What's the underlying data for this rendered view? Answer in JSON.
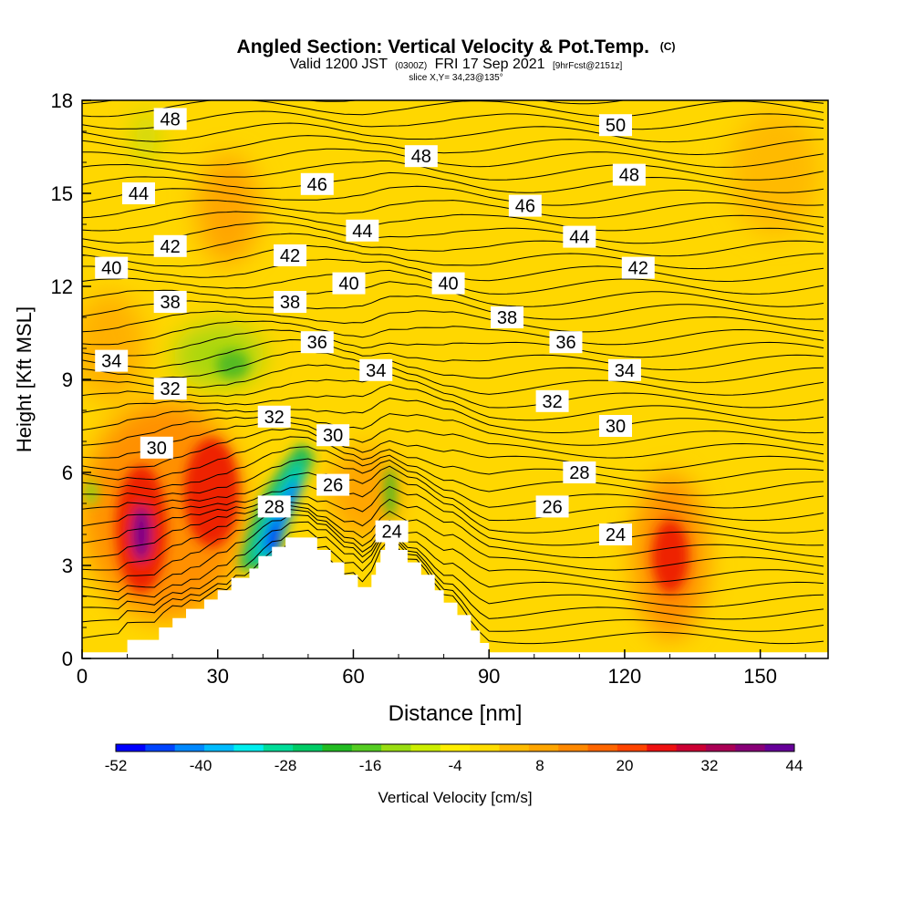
{
  "chart_data": {
    "type": "heatmap",
    "title": {
      "main": "Angled Section: Vertical Velocity & Pot.Temp.",
      "main_suffix": "(C)",
      "valid_prefix": "Valid 1200 JST",
      "valid_zone": "(0300Z)",
      "valid_date": "FRI 17 Sep 2021",
      "valid_fcst": "[9hrFcst@2151z]",
      "slice": "slice X,Y= 34,23@135°"
    },
    "xlabel": "Distance [nm]",
    "ylabel": "Height [Kft MSL]",
    "xlim": [
      0,
      165
    ],
    "ylim": [
      0,
      18
    ],
    "xticks": [
      0,
      30,
      60,
      90,
      120,
      150
    ],
    "yticks": [
      0,
      3,
      6,
      9,
      12,
      15,
      18
    ],
    "colorbar": {
      "label": "Vertical Velocity [cm/s]",
      "tick_labels": [
        "-52",
        "-40",
        "-28",
        "-16",
        "-4",
        "8",
        "20",
        "32",
        "44"
      ],
      "range": [
        -52,
        44
      ],
      "colors": [
        "#0000ff",
        "#0044ff",
        "#0088ff",
        "#00bbff",
        "#00eeee",
        "#00dd99",
        "#00cc66",
        "#22bb22",
        "#55cc22",
        "#99dd11",
        "#ccee00",
        "#ffee00",
        "#ffdd00",
        "#ffbb00",
        "#ffa500",
        "#ff8800",
        "#ff6600",
        "#ff4400",
        "#ee1111",
        "#cc0033",
        "#aa0055",
        "#880077",
        "#660099"
      ]
    },
    "theta_contour_labels": [
      {
        "text": "48",
        "x": 19.5,
        "y": 17.4
      },
      {
        "text": "50",
        "x": 118,
        "y": 17.2
      },
      {
        "text": "48",
        "x": 75,
        "y": 16.2
      },
      {
        "text": "48",
        "x": 121,
        "y": 15.6
      },
      {
        "text": "44",
        "x": 12.5,
        "y": 15.0
      },
      {
        "text": "46",
        "x": 52,
        "y": 15.3
      },
      {
        "text": "46",
        "x": 98,
        "y": 14.6
      },
      {
        "text": "44",
        "x": 62,
        "y": 13.8
      },
      {
        "text": "44",
        "x": 110,
        "y": 13.6
      },
      {
        "text": "42",
        "x": 19.5,
        "y": 13.3
      },
      {
        "text": "42",
        "x": 46,
        "y": 13.0
      },
      {
        "text": "42",
        "x": 123,
        "y": 12.6
      },
      {
        "text": "40",
        "x": 6.5,
        "y": 12.6
      },
      {
        "text": "40",
        "x": 59,
        "y": 12.1
      },
      {
        "text": "40",
        "x": 81,
        "y": 12.1
      },
      {
        "text": "38",
        "x": 19.5,
        "y": 11.5
      },
      {
        "text": "38",
        "x": 46,
        "y": 11.5
      },
      {
        "text": "38",
        "x": 94,
        "y": 11.0
      },
      {
        "text": "36",
        "x": 52,
        "y": 10.2
      },
      {
        "text": "36",
        "x": 107,
        "y": 10.2
      },
      {
        "text": "34",
        "x": 6.5,
        "y": 9.6
      },
      {
        "text": "34",
        "x": 65,
        "y": 9.3
      },
      {
        "text": "34",
        "x": 120,
        "y": 9.3
      },
      {
        "text": "32",
        "x": 19.5,
        "y": 8.7
      },
      {
        "text": "32",
        "x": 104,
        "y": 8.3
      },
      {
        "text": "32",
        "x": 42.5,
        "y": 7.8
      },
      {
        "text": "30",
        "x": 118,
        "y": 7.5
      },
      {
        "text": "30",
        "x": 55.5,
        "y": 7.2
      },
      {
        "text": "30",
        "x": 16.5,
        "y": 6.8
      },
      {
        "text": "28",
        "x": 110,
        "y": 6.0
      },
      {
        "text": "26",
        "x": 55.5,
        "y": 5.6
      },
      {
        "text": "28",
        "x": 42.5,
        "y": 4.9
      },
      {
        "text": "26",
        "x": 104,
        "y": 4.9
      },
      {
        "text": "24",
        "x": 68.5,
        "y": 4.1
      },
      {
        "text": "24",
        "x": 118,
        "y": 4.0
      }
    ],
    "terrain_x": [
      0,
      8,
      10,
      10,
      17,
      17,
      20,
      20,
      23,
      23,
      27,
      27,
      30,
      30,
      33,
      33,
      37,
      37,
      39,
      39,
      42,
      42,
      45,
      45,
      49,
      52,
      52,
      55,
      55,
      58,
      58,
      61,
      61,
      64,
      64,
      65,
      65,
      66,
      66,
      67,
      67,
      70,
      70,
      72,
      72,
      75,
      75,
      78,
      78,
      80,
      80,
      83,
      83,
      86,
      86,
      88,
      88,
      90,
      90,
      165
    ],
    "terrain_y": [
      0.2,
      0.2,
      0.2,
      0.6,
      0.6,
      1.0,
      1.0,
      1.3,
      1.3,
      1.6,
      1.6,
      1.9,
      1.9,
      2.2,
      2.2,
      2.6,
      2.6,
      2.9,
      2.9,
      3.3,
      3.3,
      3.6,
      3.6,
      3.9,
      3.9,
      3.9,
      3.5,
      3.5,
      3.1,
      3.1,
      2.7,
      2.7,
      2.3,
      2.3,
      2.7,
      2.7,
      3.1,
      3.1,
      3.5,
      3.5,
      3.9,
      3.9,
      3.5,
      3.5,
      3.1,
      3.1,
      2.7,
      2.7,
      2.2,
      2.2,
      1.8,
      1.8,
      1.4,
      1.4,
      0.9,
      0.9,
      0.5,
      0.5,
      0.2,
      0.2
    ]
  }
}
